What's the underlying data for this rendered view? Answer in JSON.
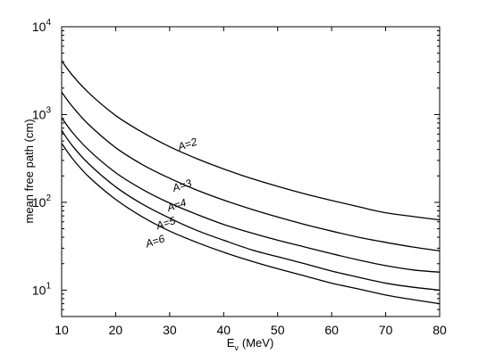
{
  "chart_data": {
    "type": "line",
    "title": "",
    "xlabel": "E",
    "xlabel_subscript": "ν",
    "xlabel_unit": "(MeV)",
    "ylabel": "mean free path (cm)",
    "xlim": [
      10,
      80
    ],
    "ylim": [
      5,
      10000
    ],
    "y_scale": "log",
    "grid": false,
    "x_ticks": [
      10,
      20,
      30,
      40,
      50,
      60,
      70,
      80
    ],
    "y_ticks": [
      {
        "value": 10,
        "base": "10",
        "exp": "1"
      },
      {
        "value": 100,
        "base": "10",
        "exp": "2"
      },
      {
        "value": 1000,
        "base": "10",
        "exp": "3"
      },
      {
        "value": 10000,
        "base": "10",
        "exp": "4"
      }
    ],
    "series": [
      {
        "name": "A=2",
        "label_at": {
          "x": 33.5,
          "y": 420
        },
        "x": [
          10,
          12,
          15,
          20,
          25,
          30,
          35,
          40,
          45,
          50,
          55,
          60,
          65,
          70,
          75,
          80
        ],
        "y": [
          4100,
          2800,
          1770,
          975,
          625,
          430,
          315,
          240,
          188,
          152,
          125,
          105,
          89,
          76,
          69,
          63
        ]
      },
      {
        "name": "A=3",
        "label_at": {
          "x": 32.5,
          "y": 142
        },
        "x": [
          10,
          12,
          15,
          20,
          25,
          30,
          35,
          40,
          45,
          50,
          55,
          60,
          65,
          70,
          75,
          80
        ],
        "y": [
          1800,
          1230,
          770,
          420,
          268,
          188,
          138,
          106,
          84,
          68,
          56,
          47,
          40,
          35,
          31,
          28
        ]
      },
      {
        "name": "A=4",
        "label_at": {
          "x": 31.5,
          "y": 85
        },
        "x": [
          10,
          12,
          15,
          20,
          25,
          30,
          35,
          40,
          45,
          50,
          55,
          60,
          65,
          70,
          75,
          80
        ],
        "y": [
          920,
          625,
          395,
          218,
          140,
          98,
          73,
          56,
          45,
          37,
          31,
          26,
          22,
          19,
          17,
          16
        ]
      },
      {
        "name": "A=5",
        "label_at": {
          "x": 29.5,
          "y": 53
        },
        "x": [
          10,
          12,
          15,
          20,
          25,
          30,
          35,
          40,
          45,
          50,
          55,
          60,
          65,
          70,
          75,
          80
        ],
        "y": [
          660,
          440,
          275,
          150,
          95,
          66,
          48,
          37,
          29,
          24,
          20,
          16.5,
          14,
          12,
          10.8,
          10
        ]
      },
      {
        "name": "A=6",
        "label_at": {
          "x": 27.5,
          "y": 33
        },
        "x": [
          10,
          12,
          15,
          20,
          25,
          30,
          35,
          40,
          45,
          50,
          55,
          60,
          65,
          70,
          75,
          80
        ],
        "y": [
          470,
          315,
          196,
          108,
          68,
          47,
          35,
          27,
          21.5,
          17.5,
          14.5,
          12,
          10.3,
          8.8,
          7.8,
          7
        ]
      }
    ],
    "colors": {
      "line": "#000000",
      "axis": "#000000",
      "background": "#ffffff"
    }
  }
}
